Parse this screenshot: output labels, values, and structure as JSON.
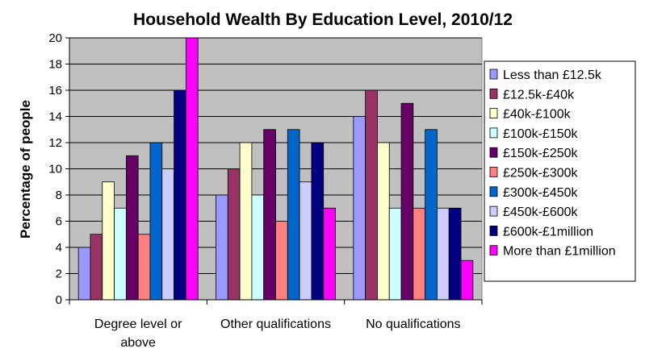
{
  "chart_data": {
    "type": "bar",
    "title": "Household Wealth By Education Level, 2010/12",
    "xlabel": "",
    "ylabel": "Percentage of people",
    "ylim": [
      0,
      20
    ],
    "yticks": [
      0,
      2,
      4,
      6,
      8,
      10,
      12,
      14,
      16,
      18,
      20
    ],
    "grid": true,
    "legend_position": "right",
    "plot_background": "#c0c0c0",
    "categories": [
      [
        "Degree level or",
        "above"
      ],
      [
        "Other qualifications"
      ],
      [
        "No qualifications"
      ]
    ],
    "series": [
      {
        "name": "Less than £12.5k",
        "color": "#9999ff",
        "values": [
          4,
          8,
          14
        ]
      },
      {
        "name": "£12.5k-£40k",
        "color": "#993366",
        "values": [
          5,
          10,
          16
        ]
      },
      {
        "name": "£40k-£100k",
        "color": "#ffffcc",
        "values": [
          9,
          12,
          12
        ]
      },
      {
        "name": "£100k-£150k",
        "color": "#ccffff",
        "values": [
          7,
          8,
          7
        ]
      },
      {
        "name": "£150k-£250k",
        "color": "#660066",
        "values": [
          11,
          13,
          15
        ]
      },
      {
        "name": "£250k-£300k",
        "color": "#ff8080",
        "values": [
          5,
          6,
          7
        ]
      },
      {
        "name": "£300k-£450k",
        "color": "#0066cc",
        "values": [
          12,
          13,
          13
        ]
      },
      {
        "name": "£450k-£600k",
        "color": "#ccccff",
        "values": [
          10,
          9,
          7
        ]
      },
      {
        "name": "£600k-£1million",
        "color": "#000080",
        "values": [
          16,
          12,
          7
        ]
      },
      {
        "name": "More than £1million",
        "color": "#ff00ff",
        "values": [
          20,
          7,
          3
        ]
      }
    ]
  }
}
